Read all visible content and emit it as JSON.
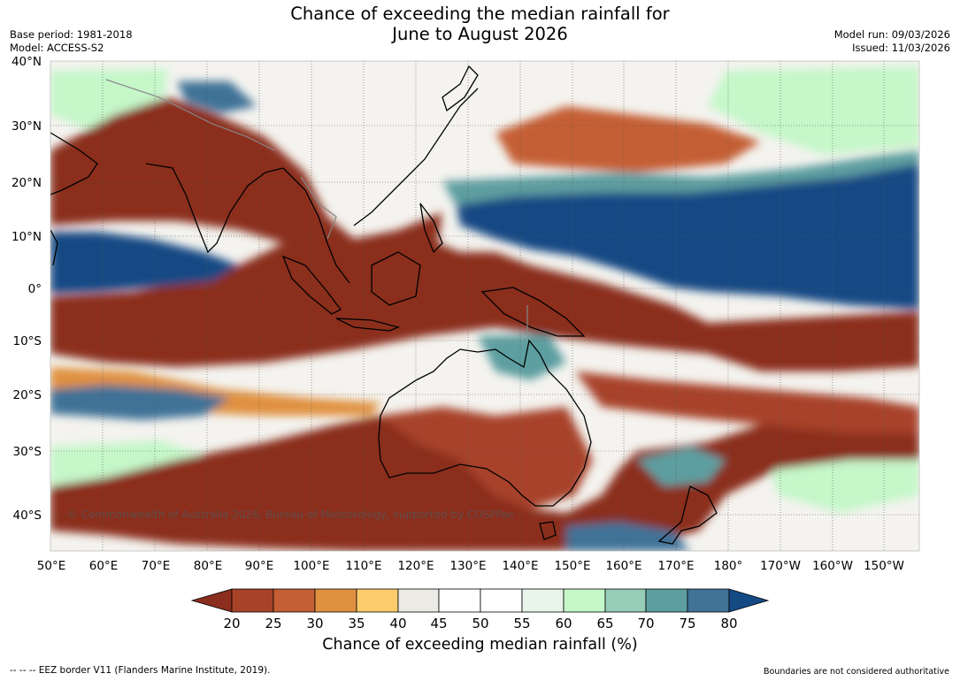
{
  "title_line1": "Chance of exceeding the median rainfall for",
  "title_line2": "June to August 2026",
  "base_period": "Base period: 1981-2018",
  "model": "Model: ACCESS-S2",
  "model_run": "Model run: 09/03/2026",
  "issued": "Issued: 11/03/2026",
  "copyright": "© Commonwealth of Australia 2026, Bureau of Meteorology, supported by COSPPac",
  "lat_labels": [
    "40°N",
    "30°N",
    "20°N",
    "10°N",
    "0°",
    "10°S",
    "20°S",
    "30°S",
    "40°S"
  ],
  "lon_labels": [
    "50°E",
    "60°E",
    "70°E",
    "80°E",
    "90°E",
    "100°E",
    "110°E",
    "120°E",
    "130°E",
    "140°E",
    "150°E",
    "160°E",
    "170°E",
    "180°",
    "170°W",
    "160°W",
    "150°W"
  ],
  "colorbar": {
    "title": "Chance of exceeding median rainfall (%)",
    "ticks": [
      "20",
      "25",
      "30",
      "35",
      "40",
      "45",
      "50",
      "55",
      "60",
      "65",
      "70",
      "75",
      "80"
    ],
    "colors": [
      "#8b2e1d",
      "#a8432a",
      "#c45f35",
      "#e0913f",
      "#fccb6b",
      "#ecebe6",
      "#ffffff",
      "#ffffff",
      "#e8f5ea",
      "#c5f7c9",
      "#96cdb8",
      "#5d9ea0",
      "#417297",
      "#134a84"
    ]
  },
  "footer_left": "--  --  -- EEZ border V11 (Flanders Marine Institute, 2019).",
  "footer_right": "Boundaries are not considered authoritative"
}
